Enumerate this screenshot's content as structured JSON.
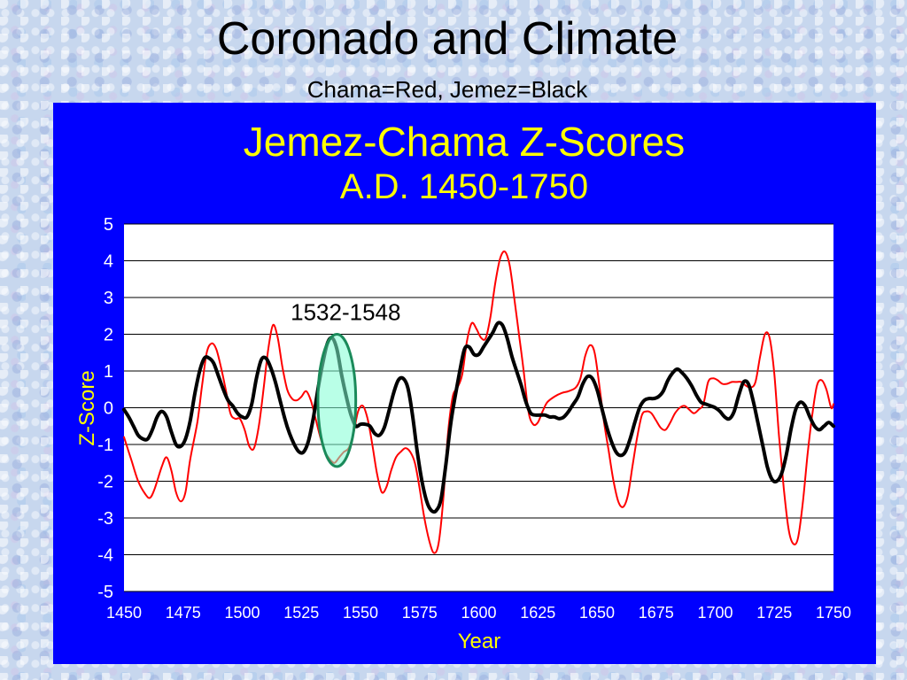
{
  "slide": {
    "title": "Coronado and Climate",
    "subtitle": "Chama=Red, Jemez=Black"
  },
  "colors": {
    "panel_bg": "#0000ff",
    "title_text": "#ffff00",
    "axis_text": "#ffffff",
    "plot_bg": "#ffffff",
    "chama": "#ff0000",
    "jemez": "#000000",
    "highlight_fill": "#7fffd4",
    "highlight_stroke": "#1a8a5a"
  },
  "chart_data": {
    "type": "line",
    "title": "Jemez-Chama Z-Scores",
    "subtitle": "A.D. 1450-1750",
    "xlabel": "Year",
    "ylabel": "Z-Score",
    "xlim": [
      1450,
      1750
    ],
    "ylim": [
      -5,
      5
    ],
    "x_ticks": [
      1450,
      1475,
      1500,
      1525,
      1550,
      1575,
      1600,
      1625,
      1650,
      1675,
      1700,
      1725,
      1750
    ],
    "y_ticks": [
      5,
      4,
      3,
      2,
      1,
      0,
      -1,
      -2,
      -3,
      -4,
      -5
    ],
    "grid": "horizontal",
    "annotation": {
      "text": "1532-1548",
      "x_range": [
        1532,
        1548
      ],
      "y_range": [
        -1.6,
        2.0
      ]
    },
    "series": [
      {
        "name": "Chama",
        "color": "#ff0000",
        "points": [
          [
            1450,
            -0.8
          ],
          [
            1453,
            -1.4
          ],
          [
            1456,
            -2.0
          ],
          [
            1459,
            -2.35
          ],
          [
            1461,
            -2.45
          ],
          [
            1463,
            -2.2
          ],
          [
            1466,
            -1.6
          ],
          [
            1468,
            -1.35
          ],
          [
            1470,
            -1.7
          ],
          [
            1472,
            -2.3
          ],
          [
            1474,
            -2.55
          ],
          [
            1476,
            -2.3
          ],
          [
            1478,
            -1.4
          ],
          [
            1481,
            -0.4
          ],
          [
            1483,
            0.6
          ],
          [
            1485,
            1.5
          ],
          [
            1487,
            1.75
          ],
          [
            1489,
            1.6
          ],
          [
            1491,
            1.1
          ],
          [
            1493,
            0.5
          ],
          [
            1495,
            -0.15
          ],
          [
            1497,
            -0.3
          ],
          [
            1499,
            -0.3
          ],
          [
            1501,
            -0.6
          ],
          [
            1503,
            -1.05
          ],
          [
            1505,
            -1.1
          ],
          [
            1507,
            -0.5
          ],
          [
            1509,
            0.5
          ],
          [
            1511,
            1.6
          ],
          [
            1513,
            2.25
          ],
          [
            1515,
            1.9
          ],
          [
            1517,
            1.1
          ],
          [
            1519,
            0.5
          ],
          [
            1521,
            0.25
          ],
          [
            1523,
            0.2
          ],
          [
            1525,
            0.3
          ],
          [
            1527,
            0.45
          ],
          [
            1529,
            0.2
          ],
          [
            1531,
            -0.3
          ],
          [
            1533,
            -0.8
          ],
          [
            1535,
            -1.2
          ],
          [
            1537,
            -1.4
          ],
          [
            1539,
            -1.5
          ],
          [
            1541,
            -1.35
          ],
          [
            1543,
            -1.2
          ],
          [
            1545,
            -1.1
          ],
          [
            1547,
            -0.7
          ],
          [
            1549,
            -0.1
          ],
          [
            1551,
            0.05
          ],
          [
            1553,
            -0.3
          ],
          [
            1555,
            -1.0
          ],
          [
            1557,
            -1.8
          ],
          [
            1559,
            -2.3
          ],
          [
            1561,
            -2.15
          ],
          [
            1563,
            -1.7
          ],
          [
            1565,
            -1.35
          ],
          [
            1567,
            -1.2
          ],
          [
            1569,
            -1.1
          ],
          [
            1571,
            -1.2
          ],
          [
            1573,
            -1.5
          ],
          [
            1575,
            -2.2
          ],
          [
            1577,
            -3.0
          ],
          [
            1579,
            -3.6
          ],
          [
            1581,
            -3.95
          ],
          [
            1583,
            -3.7
          ],
          [
            1585,
            -2.5
          ],
          [
            1587,
            -0.7
          ],
          [
            1589,
            0.3
          ],
          [
            1591,
            0.55
          ],
          [
            1593,
            0.9
          ],
          [
            1595,
            1.8
          ],
          [
            1597,
            2.3
          ],
          [
            1599,
            2.15
          ],
          [
            1601,
            1.9
          ],
          [
            1603,
            1.9
          ],
          [
            1605,
            2.5
          ],
          [
            1607,
            3.4
          ],
          [
            1609,
            4.05
          ],
          [
            1611,
            4.25
          ],
          [
            1613,
            3.9
          ],
          [
            1615,
            3.0
          ],
          [
            1617,
            2.0
          ],
          [
            1619,
            1.0
          ],
          [
            1621,
            -0.1
          ],
          [
            1623,
            -0.45
          ],
          [
            1625,
            -0.4
          ],
          [
            1627,
            -0.1
          ],
          [
            1629,
            0.15
          ],
          [
            1632,
            0.3
          ],
          [
            1635,
            0.4
          ],
          [
            1638,
            0.45
          ],
          [
            1641,
            0.55
          ],
          [
            1643,
            0.8
          ],
          [
            1645,
            1.4
          ],
          [
            1647,
            1.7
          ],
          [
            1649,
            1.5
          ],
          [
            1651,
            0.6
          ],
          [
            1653,
            -0.4
          ],
          [
            1655,
            -1.2
          ],
          [
            1657,
            -2.0
          ],
          [
            1659,
            -2.55
          ],
          [
            1661,
            -2.7
          ],
          [
            1663,
            -2.4
          ],
          [
            1665,
            -1.6
          ],
          [
            1667,
            -0.8
          ],
          [
            1669,
            -0.2
          ],
          [
            1671,
            -0.1
          ],
          [
            1673,
            -0.15
          ],
          [
            1675,
            -0.35
          ],
          [
            1677,
            -0.55
          ],
          [
            1679,
            -0.6
          ],
          [
            1681,
            -0.4
          ],
          [
            1683,
            -0.15
          ],
          [
            1685,
            0.0
          ],
          [
            1687,
            0.05
          ],
          [
            1689,
            -0.05
          ],
          [
            1691,
            -0.15
          ],
          [
            1693,
            -0.05
          ],
          [
            1695,
            0.1
          ],
          [
            1697,
            0.7
          ],
          [
            1699,
            0.8
          ],
          [
            1701,
            0.75
          ],
          [
            1703,
            0.65
          ],
          [
            1705,
            0.65
          ],
          [
            1707,
            0.7
          ],
          [
            1709,
            0.7
          ],
          [
            1711,
            0.7
          ],
          [
            1713,
            0.6
          ],
          [
            1715,
            0.55
          ],
          [
            1717,
            0.7
          ],
          [
            1719,
            1.4
          ],
          [
            1721,
            2.0
          ],
          [
            1723,
            1.9
          ],
          [
            1725,
            0.9
          ],
          [
            1727,
            -0.8
          ],
          [
            1729,
            -2.2
          ],
          [
            1731,
            -3.3
          ],
          [
            1733,
            -3.7
          ],
          [
            1735,
            -3.55
          ],
          [
            1737,
            -2.6
          ],
          [
            1739,
            -1.3
          ],
          [
            1741,
            -0.2
          ],
          [
            1743,
            0.6
          ],
          [
            1745,
            0.75
          ],
          [
            1747,
            0.5
          ],
          [
            1749,
            0.0
          ],
          [
            1750,
            0.1
          ]
        ]
      },
      {
        "name": "Jemez",
        "color": "#000000",
        "points": [
          [
            1450,
            -0.05
          ],
          [
            1452,
            -0.25
          ],
          [
            1454,
            -0.5
          ],
          [
            1456,
            -0.75
          ],
          [
            1458,
            -0.85
          ],
          [
            1460,
            -0.85
          ],
          [
            1462,
            -0.6
          ],
          [
            1464,
            -0.25
          ],
          [
            1466,
            -0.1
          ],
          [
            1468,
            -0.25
          ],
          [
            1470,
            -0.65
          ],
          [
            1472,
            -1.0
          ],
          [
            1474,
            -1.05
          ],
          [
            1476,
            -0.85
          ],
          [
            1478,
            -0.35
          ],
          [
            1480,
            0.4
          ],
          [
            1482,
            1.0
          ],
          [
            1484,
            1.35
          ],
          [
            1486,
            1.35
          ],
          [
            1488,
            1.2
          ],
          [
            1490,
            0.85
          ],
          [
            1492,
            0.5
          ],
          [
            1494,
            0.2
          ],
          [
            1496,
            0.05
          ],
          [
            1498,
            -0.15
          ],
          [
            1500,
            -0.25
          ],
          [
            1502,
            -0.25
          ],
          [
            1504,
            0.1
          ],
          [
            1506,
            0.8
          ],
          [
            1508,
            1.3
          ],
          [
            1510,
            1.35
          ],
          [
            1512,
            1.1
          ],
          [
            1514,
            0.7
          ],
          [
            1516,
            0.2
          ],
          [
            1518,
            -0.3
          ],
          [
            1520,
            -0.7
          ],
          [
            1522,
            -1.0
          ],
          [
            1524,
            -1.2
          ],
          [
            1526,
            -1.2
          ],
          [
            1528,
            -0.9
          ],
          [
            1530,
            -0.3
          ],
          [
            1532,
            0.5
          ],
          [
            1534,
            1.2
          ],
          [
            1536,
            1.75
          ],
          [
            1538,
            1.9
          ],
          [
            1540,
            1.6
          ],
          [
            1542,
            0.9
          ],
          [
            1544,
            0.3
          ],
          [
            1546,
            -0.2
          ],
          [
            1548,
            -0.5
          ],
          [
            1550,
            -0.45
          ],
          [
            1552,
            -0.45
          ],
          [
            1554,
            -0.5
          ],
          [
            1556,
            -0.7
          ],
          [
            1558,
            -0.75
          ],
          [
            1560,
            -0.55
          ],
          [
            1562,
            -0.1
          ],
          [
            1564,
            0.4
          ],
          [
            1566,
            0.75
          ],
          [
            1568,
            0.8
          ],
          [
            1570,
            0.55
          ],
          [
            1572,
            -0.2
          ],
          [
            1574,
            -1.2
          ],
          [
            1576,
            -2.0
          ],
          [
            1578,
            -2.55
          ],
          [
            1580,
            -2.8
          ],
          [
            1582,
            -2.8
          ],
          [
            1584,
            -2.5
          ],
          [
            1586,
            -1.6
          ],
          [
            1588,
            -0.5
          ],
          [
            1590,
            0.3
          ],
          [
            1592,
            1.0
          ],
          [
            1594,
            1.6
          ],
          [
            1596,
            1.65
          ],
          [
            1598,
            1.45
          ],
          [
            1600,
            1.45
          ],
          [
            1602,
            1.65
          ],
          [
            1604,
            1.85
          ],
          [
            1606,
            2.05
          ],
          [
            1608,
            2.3
          ],
          [
            1610,
            2.25
          ],
          [
            1612,
            1.9
          ],
          [
            1614,
            1.4
          ],
          [
            1616,
            1.0
          ],
          [
            1618,
            0.6
          ],
          [
            1620,
            0.15
          ],
          [
            1622,
            -0.15
          ],
          [
            1624,
            -0.2
          ],
          [
            1626,
            -0.2
          ],
          [
            1628,
            -0.2
          ],
          [
            1630,
            -0.25
          ],
          [
            1632,
            -0.25
          ],
          [
            1634,
            -0.3
          ],
          [
            1636,
            -0.25
          ],
          [
            1638,
            -0.1
          ],
          [
            1640,
            0.1
          ],
          [
            1642,
            0.3
          ],
          [
            1644,
            0.65
          ],
          [
            1646,
            0.85
          ],
          [
            1648,
            0.8
          ],
          [
            1650,
            0.5
          ],
          [
            1652,
            0.0
          ],
          [
            1654,
            -0.5
          ],
          [
            1656,
            -0.9
          ],
          [
            1658,
            -1.2
          ],
          [
            1660,
            -1.3
          ],
          [
            1662,
            -1.2
          ],
          [
            1664,
            -0.85
          ],
          [
            1666,
            -0.4
          ],
          [
            1668,
            0.0
          ],
          [
            1670,
            0.2
          ],
          [
            1672,
            0.25
          ],
          [
            1674,
            0.25
          ],
          [
            1676,
            0.3
          ],
          [
            1678,
            0.45
          ],
          [
            1680,
            0.75
          ],
          [
            1682,
            0.95
          ],
          [
            1684,
            1.05
          ],
          [
            1686,
            0.95
          ],
          [
            1688,
            0.8
          ],
          [
            1690,
            0.6
          ],
          [
            1692,
            0.35
          ],
          [
            1694,
            0.15
          ],
          [
            1696,
            0.1
          ],
          [
            1698,
            0.05
          ],
          [
            1700,
            0.0
          ],
          [
            1702,
            -0.1
          ],
          [
            1704,
            -0.25
          ],
          [
            1706,
            -0.3
          ],
          [
            1708,
            -0.1
          ],
          [
            1710,
            0.35
          ],
          [
            1712,
            0.7
          ],
          [
            1714,
            0.65
          ],
          [
            1716,
            0.2
          ],
          [
            1718,
            -0.4
          ],
          [
            1720,
            -1.0
          ],
          [
            1722,
            -1.6
          ],
          [
            1724,
            -1.95
          ],
          [
            1726,
            -2.0
          ],
          [
            1728,
            -1.8
          ],
          [
            1730,
            -1.3
          ],
          [
            1732,
            -0.6
          ],
          [
            1734,
            -0.05
          ],
          [
            1736,
            0.15
          ],
          [
            1738,
            0.05
          ],
          [
            1740,
            -0.25
          ],
          [
            1742,
            -0.5
          ],
          [
            1744,
            -0.6
          ],
          [
            1746,
            -0.5
          ],
          [
            1748,
            -0.4
          ],
          [
            1750,
            -0.5
          ]
        ]
      }
    ]
  }
}
